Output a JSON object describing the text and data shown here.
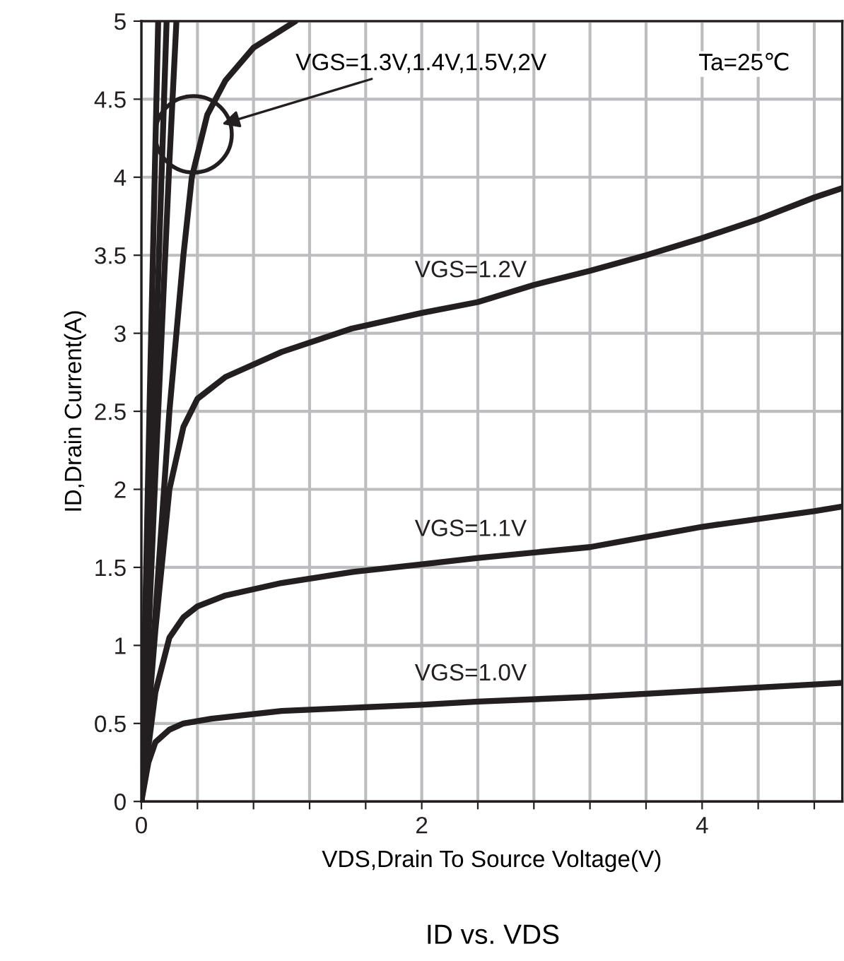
{
  "chart_data": {
    "type": "line",
    "title": "ID vs. VDS",
    "xlabel": "VDS,Drain To Source Voltage(V)",
    "ylabel": "ID,Drain Current(A)",
    "series": [
      {
        "name": "VGS=1.0V",
        "color": "#231f20",
        "x": [
          0,
          0.05,
          0.1,
          0.2,
          0.3,
          0.5,
          1,
          2,
          2.4,
          3.2,
          4,
          4.8,
          5
        ],
        "values": [
          0,
          0.25,
          0.38,
          0.46,
          0.5,
          0.53,
          0.58,
          0.62,
          0.64,
          0.67,
          0.71,
          0.75,
          0.76
        ]
      },
      {
        "name": "VGS=1.1V",
        "color": "#231f20",
        "x": [
          0,
          0.1,
          0.2,
          0.3,
          0.4,
          0.6,
          1,
          1.5,
          2,
          2.4,
          3.2,
          4,
          4.8,
          5
        ],
        "values": [
          0,
          0.7,
          1.05,
          1.18,
          1.25,
          1.32,
          1.4,
          1.47,
          1.52,
          1.56,
          1.63,
          1.76,
          1.86,
          1.89
        ]
      },
      {
        "name": "VGS=1.2V",
        "color": "#231f20",
        "x": [
          0,
          0.1,
          0.2,
          0.3,
          0.4,
          0.6,
          1,
          1.5,
          2,
          2.4,
          2.8,
          3.2,
          3.6,
          4,
          4.4,
          4.8,
          5
        ],
        "values": [
          0,
          1.1,
          2.0,
          2.4,
          2.58,
          2.72,
          2.88,
          3.03,
          3.13,
          3.2,
          3.31,
          3.4,
          3.5,
          3.61,
          3.73,
          3.87,
          3.93
        ]
      },
      {
        "color": "#231f20",
        "x": [
          0,
          0.1,
          0.2,
          0.25,
          0.3,
          0.36,
          0.47,
          0.6,
          0.8,
          1.1
        ],
        "values": [
          0,
          1.2,
          2.5,
          3.0,
          3.5,
          4.0,
          4.4,
          4.62,
          4.83,
          5.0
        ]
      },
      {
        "color": "#231f20",
        "x": [
          0,
          0.1,
          0.2,
          0.25
        ],
        "values": [
          0,
          2.1,
          4.1,
          5.0
        ]
      },
      {
        "color": "#231f20",
        "x": [
          0,
          0.1,
          0.18
        ],
        "values": [
          0,
          2.8,
          5.0
        ]
      },
      {
        "color": "#231f20",
        "x": [
          0,
          0.06,
          0.12
        ],
        "values": [
          0,
          2.6,
          5.0
        ]
      }
    ],
    "xlim": [
      0,
      5
    ],
    "xticks": [
      0,
      {
        "value": 0.4,
        "label": null
      },
      {
        "value": 0.8,
        "label": null
      },
      {
        "value": 1.2,
        "label": null
      },
      {
        "value": 1.6,
        "label": null
      },
      2,
      {
        "value": 2.4,
        "label": null
      },
      {
        "value": 2.8,
        "label": null
      },
      {
        "value": 3.2,
        "label": null
      },
      {
        "value": 3.6,
        "label": null
      },
      4,
      {
        "value": 4.4,
        "label": null
      },
      {
        "value": 4.8,
        "label": null
      }
    ],
    "ylim": [
      0,
      5
    ],
    "yticks": [
      0,
      0.5,
      1,
      1.5,
      2,
      2.5,
      3,
      3.5,
      4,
      4.5,
      5
    ],
    "grid": true,
    "annotations": [
      "VGS=1.3V,1.4V,1.5V,2V",
      "Ta=25℃"
    ]
  }
}
